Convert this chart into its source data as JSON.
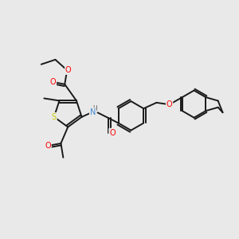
{
  "background_color": "#e9e9e9",
  "bond_color": "#1a1a1a",
  "atom_colors": {
    "O": "#ff0000",
    "N": "#4488cc",
    "S": "#cccc00",
    "C": "#1a1a1a"
  }
}
